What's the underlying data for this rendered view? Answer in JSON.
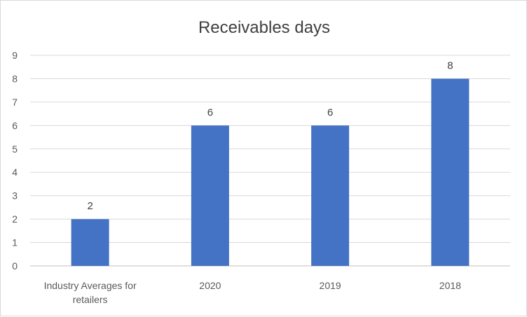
{
  "chart_data": {
    "type": "bar",
    "title": "Receivables days",
    "categories": [
      [
        "Industry Averages for",
        "retailers"
      ],
      [
        "2020"
      ],
      [
        "2019"
      ],
      [
        "2018"
      ]
    ],
    "values": [
      2,
      6,
      6,
      8
    ],
    "ylim": [
      0,
      9
    ],
    "yticks": [
      "0",
      "1",
      "2",
      "3",
      "4",
      "5",
      "6",
      "7",
      "8",
      "9"
    ],
    "grid": true,
    "legend": "none",
    "bar_color": "#4472C4",
    "gridline_color": "#d9d9d9"
  }
}
